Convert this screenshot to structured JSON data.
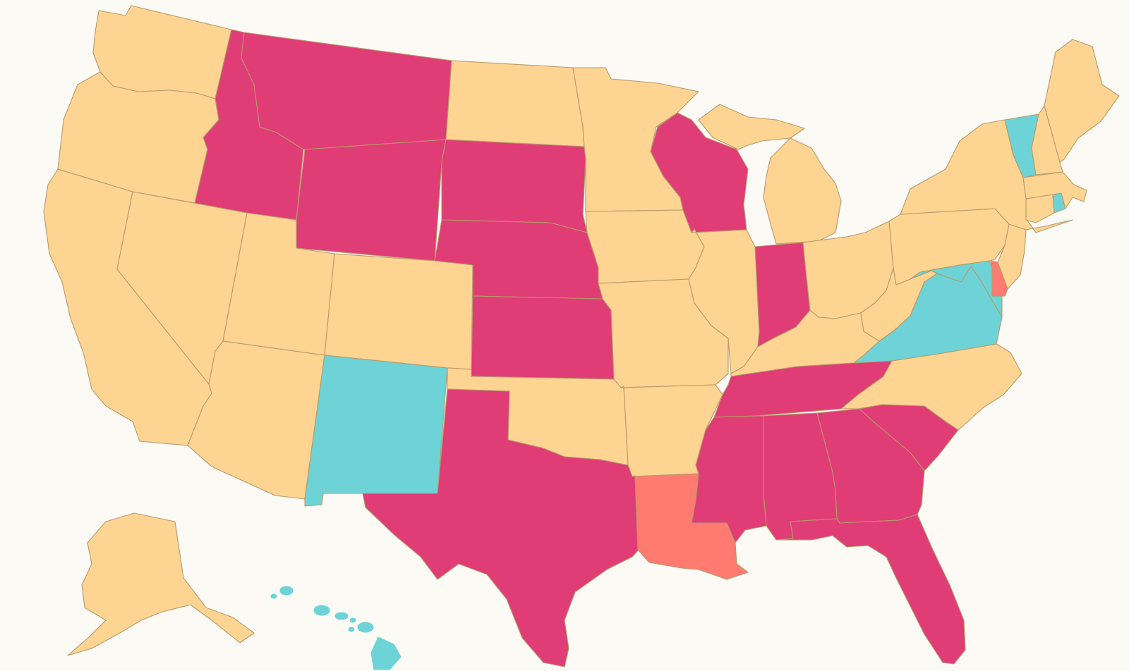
{
  "map": {
    "background": "#fcfaf5",
    "border_color": "#b79a6a",
    "categories": [
      {
        "key": "a",
        "color": "#fdd492"
      },
      {
        "key": "b",
        "color": "#e03c75"
      },
      {
        "key": "c",
        "color": "#6dd3d6"
      },
      {
        "key": "d",
        "color": "#ff7b72"
      }
    ],
    "states": [
      {
        "code": "WA",
        "cat": "a"
      },
      {
        "code": "OR",
        "cat": "a"
      },
      {
        "code": "CA",
        "cat": "a"
      },
      {
        "code": "NV",
        "cat": "a"
      },
      {
        "code": "ID",
        "cat": "b"
      },
      {
        "code": "MT",
        "cat": "b"
      },
      {
        "code": "WY",
        "cat": "b"
      },
      {
        "code": "UT",
        "cat": "a"
      },
      {
        "code": "AZ",
        "cat": "a"
      },
      {
        "code": "CO",
        "cat": "a"
      },
      {
        "code": "NM",
        "cat": "c"
      },
      {
        "code": "ND",
        "cat": "a"
      },
      {
        "code": "SD",
        "cat": "b"
      },
      {
        "code": "NE",
        "cat": "b"
      },
      {
        "code": "KS",
        "cat": "b"
      },
      {
        "code": "OK",
        "cat": "a"
      },
      {
        "code": "TX",
        "cat": "b"
      },
      {
        "code": "MN",
        "cat": "a"
      },
      {
        "code": "IA",
        "cat": "a"
      },
      {
        "code": "MO",
        "cat": "a"
      },
      {
        "code": "AR",
        "cat": "a"
      },
      {
        "code": "LA",
        "cat": "d"
      },
      {
        "code": "WI",
        "cat": "b"
      },
      {
        "code": "IL",
        "cat": "a"
      },
      {
        "code": "MI",
        "cat": "a"
      },
      {
        "code": "IN",
        "cat": "b"
      },
      {
        "code": "OH",
        "cat": "a"
      },
      {
        "code": "KY",
        "cat": "a"
      },
      {
        "code": "TN",
        "cat": "b"
      },
      {
        "code": "MS",
        "cat": "b"
      },
      {
        "code": "AL",
        "cat": "b"
      },
      {
        "code": "GA",
        "cat": "b"
      },
      {
        "code": "FL",
        "cat": "b"
      },
      {
        "code": "SC",
        "cat": "b"
      },
      {
        "code": "NC",
        "cat": "a"
      },
      {
        "code": "VA",
        "cat": "c"
      },
      {
        "code": "WV",
        "cat": "a"
      },
      {
        "code": "MD",
        "cat": "c"
      },
      {
        "code": "DE",
        "cat": "d"
      },
      {
        "code": "PA",
        "cat": "a"
      },
      {
        "code": "NJ",
        "cat": "a"
      },
      {
        "code": "NY",
        "cat": "a"
      },
      {
        "code": "CT",
        "cat": "a"
      },
      {
        "code": "RI",
        "cat": "c"
      },
      {
        "code": "MA",
        "cat": "a"
      },
      {
        "code": "VT",
        "cat": "c"
      },
      {
        "code": "NH",
        "cat": "a"
      },
      {
        "code": "ME",
        "cat": "a"
      },
      {
        "code": "AK",
        "cat": "a"
      },
      {
        "code": "HI",
        "cat": "c"
      }
    ]
  }
}
